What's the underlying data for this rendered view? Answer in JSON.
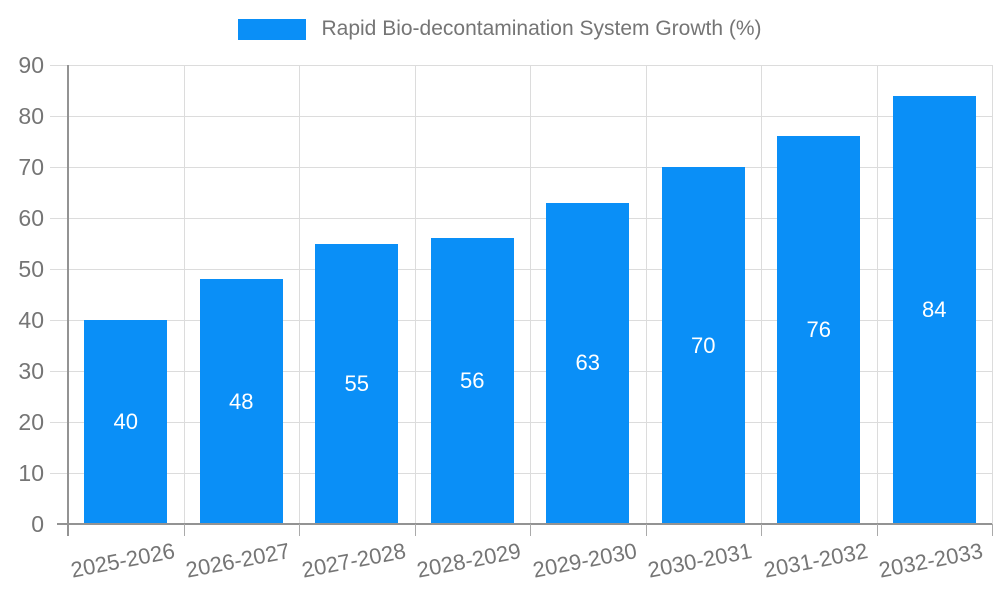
{
  "chart_data": {
    "type": "bar",
    "title": "Rapid Bio-decontamination System Growth (%)",
    "categories": [
      "2025-2026",
      "2026-2027",
      "2027-2028",
      "2028-2029",
      "2029-2030",
      "2030-2031",
      "2031-2032",
      "2032-2033"
    ],
    "values": [
      40,
      48,
      55,
      56,
      63,
      70,
      76,
      84
    ],
    "xlabel": "",
    "ylabel": "",
    "ylim": [
      0,
      90
    ],
    "yticks": [
      0,
      10,
      20,
      30,
      40,
      50,
      60,
      70,
      80,
      90
    ],
    "grid": true,
    "legend_position": "top",
    "value_labels": "inside-center"
  },
  "colors": {
    "bar_fill": "#0a8ff7",
    "axis_text": "#757575",
    "legend_text": "#757575",
    "value_label_text": "#ffffff",
    "gridline": "#dcdcdc",
    "axis_line": "#939393",
    "tick_mark": "#aaaaaa",
    "background": "#ffffff"
  }
}
